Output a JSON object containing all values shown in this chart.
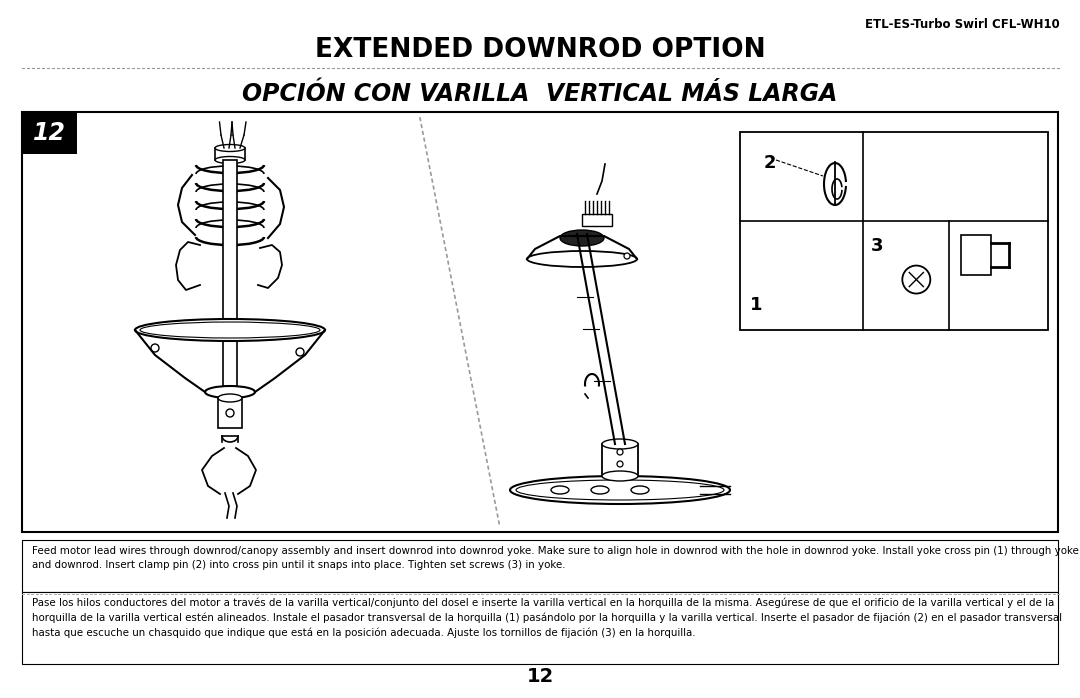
{
  "page_number": "12",
  "model_name": "ETL-ES-Turbo Swirl CFL-WH10",
  "title_en": "EXTENDED DOWNROD OPTION",
  "title_es": "OPCIÓN CON VARILLA  VERTICAL MÁS LARGA",
  "step_number": "12",
  "english_text": "Feed motor lead wires through downrod/canopy assembly and insert downrod into downrod yoke. Make sure to align hole in downrod with the hole in downrod yoke. Install yoke cross pin (1) through yoke and downrod. Insert clamp pin (2) into cross pin until it snaps into place. Tighten set screws (3) in yoke.",
  "spanish_text": "Pase los hilos conductores del motor a través de la varilla vertical/conjunto del dosel e inserte la varilla vertical en la horquilla de la misma. Asegúrese de que el orificio de la varilla vertical y el de la horquilla de la varilla vertical estén alineados. Instale el pasador transversal de la horquilla (1) pasándolo por la horquilla y la varilla vertical. Inserte el pasador de fijación (2) en el pasador transversal hasta que escuche un chasquido que indique que está en la posición adecuada. Ajuste los tornillos de fijación (3) en la horquilla.",
  "bg_color": "#ffffff",
  "text_color": "#000000",
  "border_color": "#000000",
  "step_bg": "#000000",
  "step_text": "#ffffff",
  "dotted_color": "#888888",
  "image_area_border": "#000000"
}
